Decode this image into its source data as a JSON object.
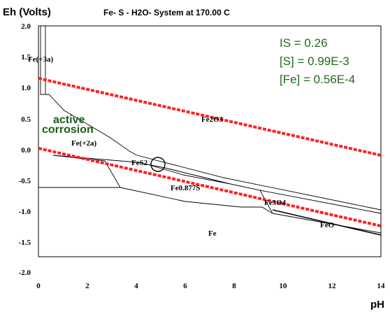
{
  "title": "Fe- S - H2O- System at 170.00 C",
  "ylabel": "Eh (Volts)",
  "xlabel": "pH",
  "xticks": [
    "0",
    "2",
    "4",
    "6",
    "8",
    "10",
    "12",
    "14"
  ],
  "yticks": [
    "2.0",
    "1.5",
    "1.0",
    "0.5",
    "0.0",
    "-0.5",
    "-1.0",
    "-1.5",
    "-2.0"
  ],
  "params": {
    "is": "IS = 0.26",
    "s": "[S] = 0.99E-3",
    "fe": "[Fe] = 0.56E-4"
  },
  "annotation": {
    "line1": "active",
    "line2": "corrosion"
  },
  "species": {
    "fe3a": "Fe(+3a)",
    "fe2a": "Fe(+2a)",
    "fe2o3": "Fe2O3",
    "fes2": "FeS2",
    "fe0877s": "Fe0.877S",
    "fe3o4": "Fe3O4",
    "feo": "FeO",
    "fe": "Fe"
  },
  "colors": {
    "water_lines": "#ff2020",
    "params_text": "#1e6b1e",
    "annotation_text": "#1a5c1a",
    "boundaries": "#000000"
  },
  "chart_data": {
    "type": "pourbaix",
    "xlim": [
      0,
      14
    ],
    "ylim": [
      -2.0,
      2.0
    ],
    "water_upper": [
      [
        0,
        1.12
      ],
      [
        14,
        -0.12
      ]
    ],
    "water_lower": [
      [
        0,
        0.0
      ],
      [
        14,
        -1.25
      ]
    ]
  }
}
